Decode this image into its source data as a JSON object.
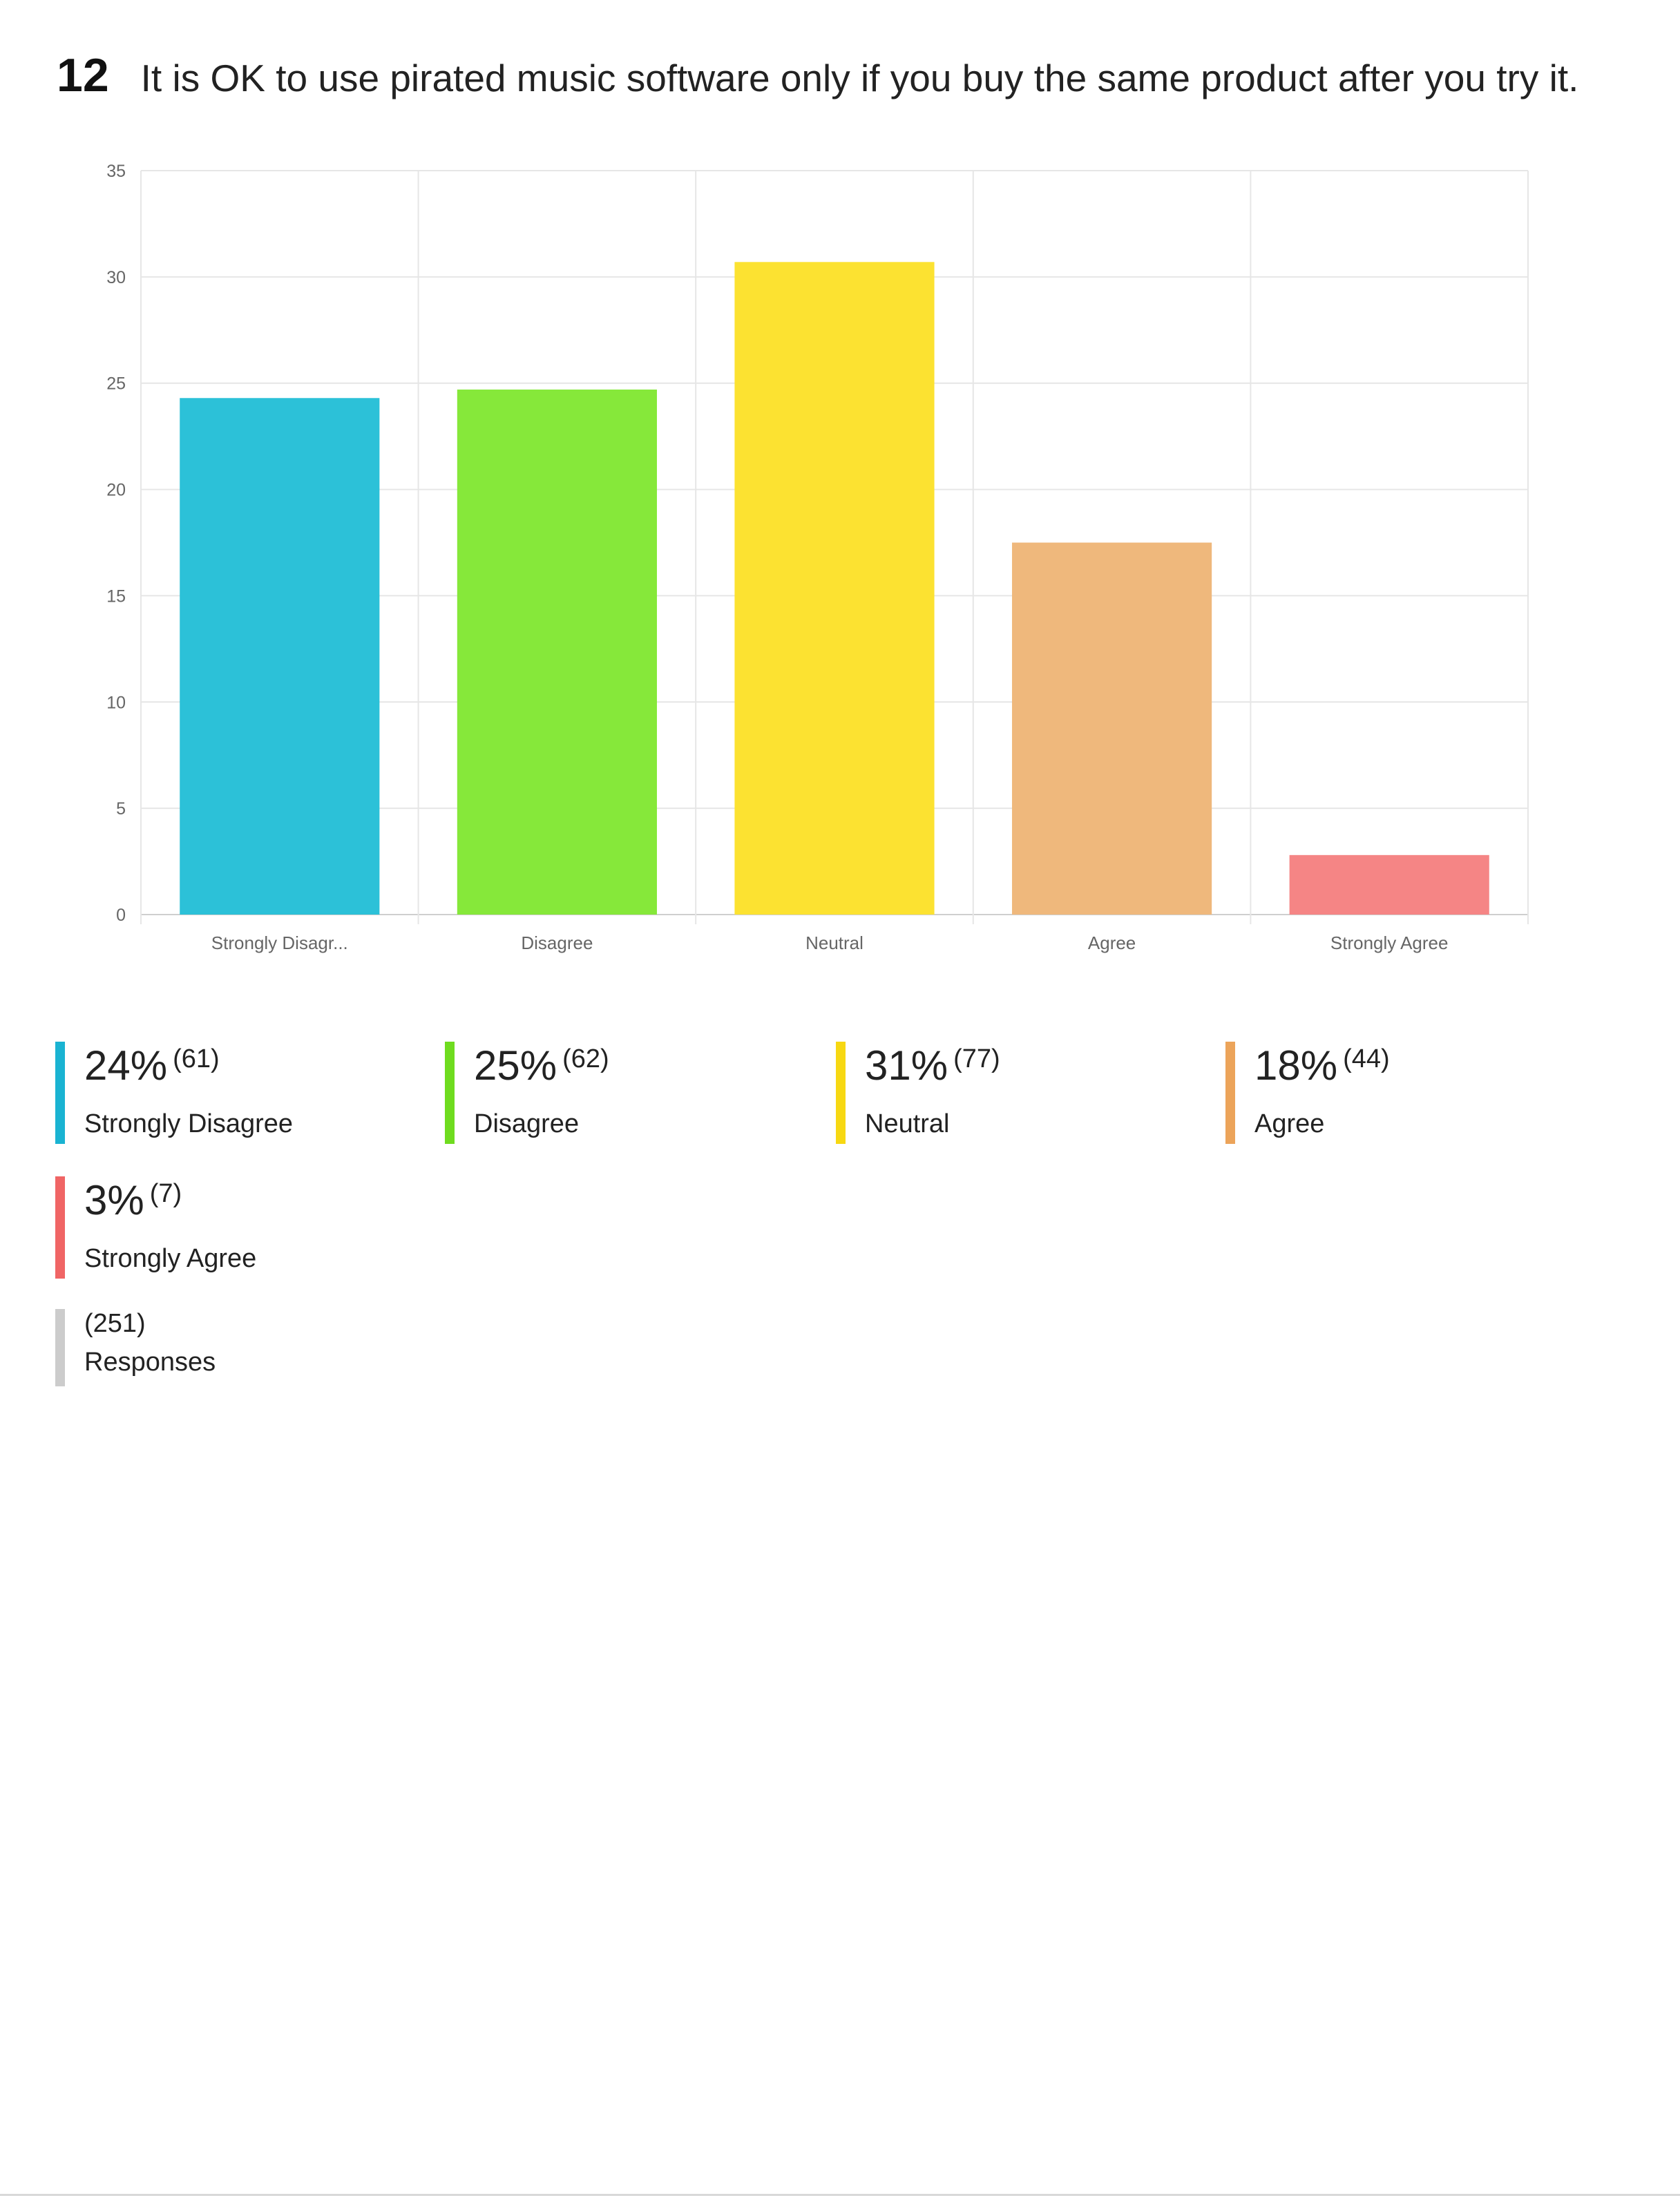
{
  "question": {
    "number": "12",
    "text": "It is OK to use pirated music software only if you buy the same product after you try it."
  },
  "chart_data": {
    "type": "bar",
    "categories": [
      "Strongly Disagr...",
      "Disagree",
      "Neutral",
      "Agree",
      "Strongly Agree"
    ],
    "values": [
      24.3,
      24.7,
      30.7,
      17.5,
      2.8
    ],
    "ylim": [
      0,
      35
    ],
    "yticks": [
      "0",
      "5",
      "10",
      "15",
      "20",
      "25",
      "30",
      "35"
    ],
    "grid": true,
    "colors": [
      "#2cc1d8",
      "#86e83a",
      "#fce231",
      "#efb87c",
      "#f58585"
    ]
  },
  "legend": [
    {
      "pct": "24%",
      "count": "(61)",
      "label": "Strongly Disagree",
      "color": "#1ab3d2"
    },
    {
      "pct": "25%",
      "count": "(62)",
      "label": "Disagree",
      "color": "#6fdc1f"
    },
    {
      "pct": "31%",
      "count": "(77)",
      "label": "Neutral",
      "color": "#f7d812"
    },
    {
      "pct": "18%",
      "count": "(44)",
      "label": "Agree",
      "color": "#eca45a"
    },
    {
      "pct": "3%",
      "count": "(7)",
      "label": "Strongly Agree",
      "color": "#f06565"
    }
  ],
  "responses": {
    "count": "(251)",
    "label": "Responses",
    "color": "#cccccc"
  }
}
